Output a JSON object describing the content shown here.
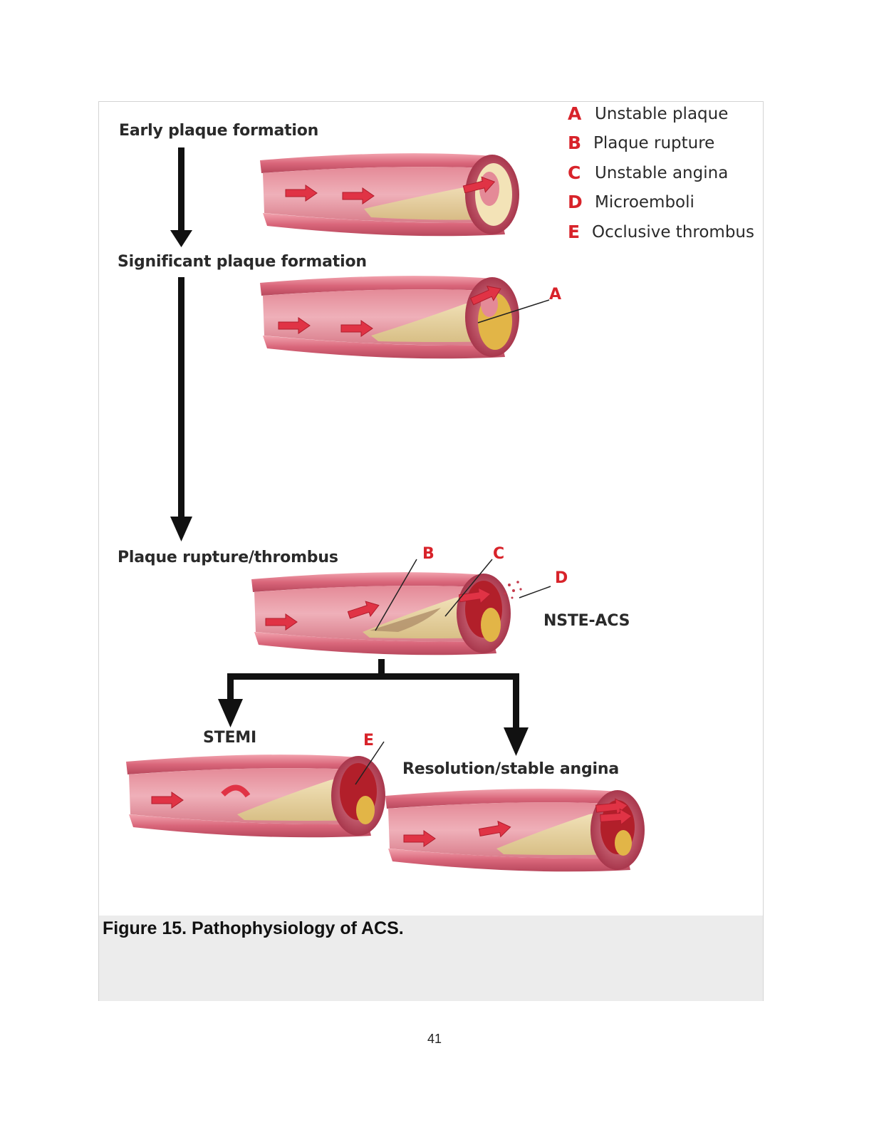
{
  "figure": {
    "caption": "Figure 15. Pathophysiology of ACS.",
    "stages": {
      "early": "Early plaque formation",
      "significant": "Significant plaque formation",
      "rupture": "Plaque rupture/thrombus",
      "stemi": "STEMI",
      "resolution": "Resolution/stable angina",
      "nste": "NSTE-ACS"
    },
    "legend": [
      {
        "letter": "A",
        "text": "Unstable plaque"
      },
      {
        "letter": "B",
        "text": "Plaque rupture"
      },
      {
        "letter": "C",
        "text": "Unstable angina"
      },
      {
        "letter": "D",
        "text": "Microemboli"
      },
      {
        "letter": "E",
        "text": "Occlusive thrombus"
      }
    ],
    "callouts": [
      "A",
      "B",
      "C",
      "D",
      "E"
    ],
    "colors": {
      "accent_red": "#d8232a",
      "vessel_wall": "#d96a7c",
      "plaque": "#ecd9a8",
      "thrombus": "#b21f2a"
    }
  },
  "page": {
    "number": "41"
  }
}
